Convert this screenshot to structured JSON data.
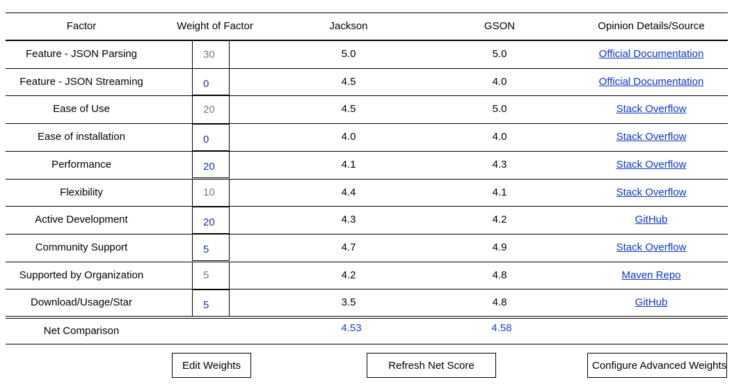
{
  "table": {
    "headers": {
      "factor": "Factor",
      "weight": "Weight of Factor",
      "jackson": "Jackson",
      "gson": "GSON",
      "source": "Opinion Details/Source"
    },
    "rows": [
      {
        "factor": "Feature - JSON Parsing",
        "weight": "30",
        "weight_style": "static",
        "jackson": "5.0",
        "gson": "5.0",
        "source": "Official Documentation"
      },
      {
        "factor": "Feature - JSON Streaming",
        "weight": "0",
        "weight_style": "active",
        "jackson": "4.5",
        "gson": "4.0",
        "source": "Official Documentation"
      },
      {
        "factor": "Ease of Use",
        "weight": "20",
        "weight_style": "static",
        "jackson": "4.5",
        "gson": "5.0",
        "source": "Stack Overflow"
      },
      {
        "factor": "Ease of installation",
        "weight": "0",
        "weight_style": "active",
        "jackson": "4.0",
        "gson": "4.0",
        "source": "Stack Overflow"
      },
      {
        "factor": "Performance",
        "weight": "20",
        "weight_style": "active",
        "jackson": "4.1",
        "gson": "4.3",
        "source": "Stack Overflow"
      },
      {
        "factor": "Flexibility",
        "weight": "10",
        "weight_style": "static",
        "jackson": "4.4",
        "gson": "4.1",
        "source": "Stack Overflow"
      },
      {
        "factor": "Active Development",
        "weight": "20",
        "weight_style": "active",
        "jackson": "4.3",
        "gson": "4.2",
        "source": "GitHub"
      },
      {
        "factor": "Community Support",
        "weight": "5",
        "weight_style": "active",
        "jackson": "4.7",
        "gson": "4.9",
        "source": "Stack Overflow"
      },
      {
        "factor": "Supported by Organization",
        "weight": "5",
        "weight_style": "static",
        "jackson": "4.2",
        "gson": "4.8",
        "source": "Maven Repo"
      },
      {
        "factor": "Download/Usage/Star",
        "weight": "5",
        "weight_style": "active",
        "jackson": "3.5",
        "gson": "4.8",
        "source": "GitHub"
      }
    ],
    "net": {
      "label": "Net Comparison",
      "jackson": "4.53",
      "gson": "4.58"
    }
  },
  "buttons": {
    "edit_weights": "Edit Weights",
    "refresh_net_score": "Refresh Net Score",
    "configure_advanced_weights": "Configure Advanced Weights"
  },
  "colors": {
    "link": "#0b35cc",
    "active_weight": "#1530c8",
    "static_weight": "#7a7a7a",
    "score": "#1a3fd1"
  }
}
